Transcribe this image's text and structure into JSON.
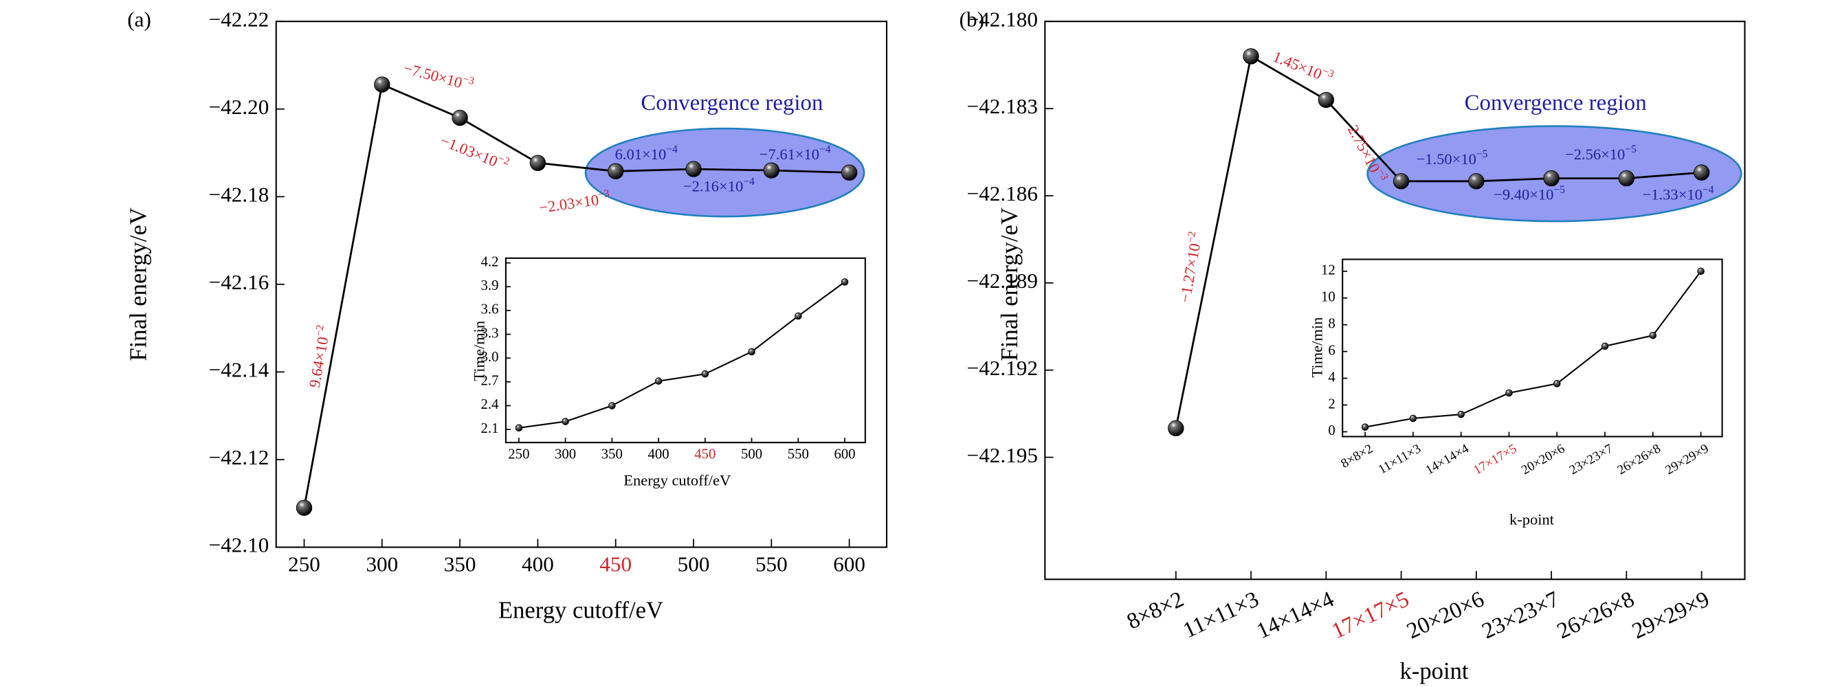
{
  "chart_data": [
    {
      "type": "line",
      "panel_label": "(a)",
      "x": [
        250,
        300,
        350,
        400,
        450,
        500,
        550,
        600
      ],
      "values": [
        -42.109,
        -42.2056,
        -42.198,
        -42.1877,
        -42.1858,
        -42.1863,
        -42.186,
        -42.1855
      ],
      "color": "#000000",
      "xlim": [
        232,
        624
      ],
      "xticks": [
        250,
        300,
        350,
        400,
        450,
        500,
        550,
        600
      ],
      "highlight_index": 4,
      "highlight_color": "#d2232a",
      "ylim": [
        -42.1,
        -42.22
      ],
      "yticks": [
        {
          "value": -42.22,
          "label": "−42.22"
        },
        {
          "value": -42.2,
          "label": "−42.20"
        },
        {
          "value": -42.18,
          "label": "−42.18"
        },
        {
          "value": -42.16,
          "label": "−42.16"
        },
        {
          "value": -42.14,
          "label": "−42.14"
        },
        {
          "value": -42.12,
          "label": "−42.12"
        },
        {
          "value": -42.1,
          "label": "−42.10"
        }
      ],
      "xlabel": "Energy cutoff/eV",
      "ylabel": "Final energy/eV",
      "region_label": "Convergence region",
      "annotations": [
        {
          "text": "9.64×10",
          "exponent": "−2",
          "color": "#d2232a"
        },
        {
          "text": "−7.50×10",
          "exponent": "−3",
          "color": "#d2232a"
        },
        {
          "text": "−1.03×10",
          "exponent": "−2",
          "color": "#d2232a"
        },
        {
          "text": "−2.03×10",
          "exponent": "−3",
          "color": "#d2232a"
        },
        {
          "text": "6.01×10",
          "exponent": "−4",
          "color": "#1f1f9f"
        },
        {
          "text": "−2.16×10",
          "exponent": "−4",
          "color": "#1f1f9f"
        },
        {
          "text": "−7.61×10",
          "exponent": "−4",
          "color": "#1f1f9f"
        }
      ]
    },
    {
      "type": "line",
      "x": [
        250,
        300,
        350,
        400,
        450,
        500,
        550,
        600
      ],
      "values": [
        2.12,
        2.2,
        2.4,
        2.71,
        2.8,
        3.08,
        3.53,
        3.96
      ],
      "color": "#000000",
      "xlim": [
        236,
        622
      ],
      "xticks": [
        250,
        300,
        350,
        400,
        450,
        500,
        550,
        600
      ],
      "highlight_index": 4,
      "highlight_color": "#d2232a",
      "ylim": [
        1.935,
        4.26
      ],
      "yticks": [
        2.1,
        2.4,
        2.7,
        {
          "value": 3.0,
          "label": "3.0"
        },
        3.3,
        3.6,
        3.9,
        4.2
      ],
      "xlabel": "Energy cutoff/eV",
      "ylabel": "Time/min"
    },
    {
      "type": "line",
      "panel_label": "(b)",
      "categories": [
        "8×8×2",
        "11×11×3",
        "14×14×4",
        "17×17×5",
        "20×20×6",
        "23×23×7",
        "26×26×8",
        "29×29×9"
      ],
      "values": [
        -42.194,
        -42.1812,
        -42.1827,
        -42.1855,
        -42.1855,
        -42.1854,
        -42.1854,
        -42.1852
      ],
      "color": "#000000",
      "highlight_index": 3,
      "highlight_color": "#d2232a",
      "ylim": [
        -42.1992,
        -42.18
      ],
      "yticks": [
        {
          "value": -42.18,
          "label": "−42.180"
        },
        {
          "value": -42.183,
          "label": "−42.183"
        },
        {
          "value": -42.186,
          "label": "−42.186"
        },
        {
          "value": -42.189,
          "label": "−42.189"
        },
        {
          "value": -42.192,
          "label": "−42.192"
        },
        {
          "value": -42.195,
          "label": "−42.195"
        }
      ],
      "xlabel": "k-point",
      "ylabel": "Final energy/eV",
      "region_label": "Convergence region",
      "annotations": [
        {
          "text": "−1.27×10",
          "exponent": "−2",
          "color": "#d2232a"
        },
        {
          "text": "1.45×10",
          "exponent": "−3",
          "color": "#d2232a"
        },
        {
          "text": "2.75×10",
          "exponent": "−3",
          "color": "#d2232a"
        },
        {
          "text": "−1.50×10",
          "exponent": "−5",
          "color": "#1f1f9f"
        },
        {
          "text": "−9.40×10",
          "exponent": "−5",
          "color": "#1f1f9f"
        },
        {
          "text": "−2.56×10",
          "exponent": "−5",
          "color": "#1f1f9f"
        },
        {
          "text": "−1.33×10",
          "exponent": "−4",
          "color": "#1f1f9f"
        }
      ]
    },
    {
      "type": "line",
      "categories": [
        "8×8×2",
        "11×11×3",
        "14×14×4",
        "17×17×5",
        "20×20×6",
        "23×23×7",
        "26×26×8",
        "29×29×9"
      ],
      "values": [
        0.35,
        1.0,
        1.3,
        2.9,
        3.6,
        6.4,
        7.2,
        12.0
      ],
      "color": "#000000",
      "highlight_index": 3,
      "highlight_color": "#d2232a",
      "ylim": [
        -0.36,
        12.89
      ],
      "yticks": [
        0,
        2,
        4,
        6,
        8,
        10,
        12
      ],
      "xlabel": "k-point",
      "ylabel": "Time/min"
    }
  ]
}
